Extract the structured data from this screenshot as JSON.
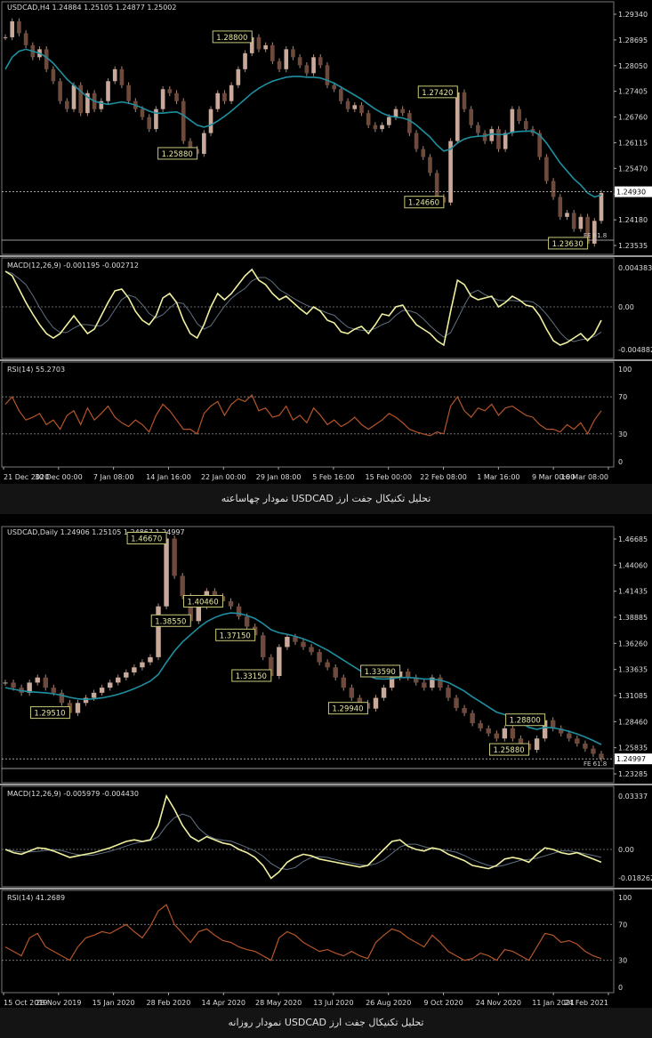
{
  "chart_data": [
    {
      "type": "candlestick",
      "symbol_header": "USDCAD,H4  1.24884 1.25105 1.24877 1.25002",
      "caption": "تحلیل تکنیکال جفت ارز USDCAD نمودار چهاساعته",
      "price_axis": [
        "1.29340",
        "1.28695",
        "1.28050",
        "1.27405",
        "1.26760",
        "1.26115",
        "1.25470",
        "1.24825",
        "1.24180",
        "1.23535"
      ],
      "price_range": [
        1.2345,
        1.296
      ],
      "current_price": "1.24930",
      "fe_label": "FE 61.8",
      "price_series": [
        1.288,
        1.292,
        1.289,
        1.286,
        1.283,
        1.285,
        1.28,
        1.277,
        1.272,
        1.27,
        1.276,
        1.269,
        1.274,
        1.27,
        1.272,
        1.277,
        1.28,
        1.276,
        1.272,
        1.27,
        1.268,
        1.265,
        1.27,
        1.275,
        1.274,
        1.272,
        1.262,
        1.26,
        1.2588,
        1.264,
        1.27,
        1.274,
        1.272,
        1.276,
        1.28,
        1.284,
        1.288,
        1.285,
        1.286,
        1.282,
        1.28,
        1.285,
        1.283,
        1.281,
        1.279,
        1.283,
        1.281,
        1.276,
        1.275,
        1.272,
        1.27,
        1.271,
        1.269,
        1.266,
        1.265,
        1.266,
        1.268,
        1.27,
        1.269,
        1.264,
        1.26,
        1.258,
        1.254,
        1.248,
        1.2466,
        1.262,
        1.2742,
        1.27,
        1.266,
        1.264,
        1.262,
        1.265,
        1.26,
        1.264,
        1.27,
        1.267,
        1.265,
        1.264,
        1.258,
        1.252,
        1.248,
        1.243,
        1.244,
        1.24,
        1.243,
        1.2363,
        1.242,
        1.249
      ],
      "ma_series": [
        1.28,
        1.283,
        1.2845,
        1.285,
        1.2845,
        1.284,
        1.283,
        1.2815,
        1.2795,
        1.2775,
        1.276,
        1.2745,
        1.273,
        1.272,
        1.2715,
        1.2712,
        1.2715,
        1.2718,
        1.2715,
        1.271,
        1.2703,
        1.2695,
        1.269,
        1.269,
        1.2692,
        1.2693,
        1.2685,
        1.2672,
        1.266,
        1.2655,
        1.266,
        1.267,
        1.2682,
        1.2695,
        1.271,
        1.2725,
        1.274,
        1.2752,
        1.2762,
        1.277,
        1.2775,
        1.278,
        1.2782,
        1.2782,
        1.278,
        1.278,
        1.2778,
        1.2772,
        1.2765,
        1.2755,
        1.2745,
        1.2735,
        1.2725,
        1.2712,
        1.27,
        1.269,
        1.2683,
        1.268,
        1.2678,
        1.2672,
        1.266,
        1.2645,
        1.263,
        1.261,
        1.2595,
        1.26,
        1.2615,
        1.2625,
        1.263,
        1.2632,
        1.2633,
        1.2638,
        1.2636,
        1.2637,
        1.2642,
        1.2644,
        1.2645,
        1.2645,
        1.2635,
        1.2615,
        1.259,
        1.2565,
        1.2545,
        1.2525,
        1.251,
        1.249,
        1.248,
        1.2485
      ],
      "level_labels": [
        {
          "text": "1.28800",
          "index": 36,
          "value": 1.288
        },
        {
          "text": "1.25880",
          "index": 28,
          "value": 1.2588
        },
        {
          "text": "1.27420",
          "index": 66,
          "value": 1.2742
        },
        {
          "text": "1.24660",
          "index": 64,
          "value": 1.2466
        },
        {
          "text": "1.23630",
          "index": 85,
          "value": 1.2363
        }
      ],
      "macd": {
        "header": "MACD(12,26,9) -0.001195 -0.002712",
        "axis": [
          "0.004383",
          "0.00",
          "-0.004882"
        ],
        "range": [
          -0.0052,
          0.0047
        ],
        "series": [
          0.004,
          0.0035,
          0.002,
          0.0005,
          -0.0008,
          -0.002,
          -0.003,
          -0.0035,
          -0.003,
          -0.002,
          -0.001,
          -0.002,
          -0.003,
          -0.0025,
          -0.001,
          0.0005,
          0.0018,
          0.002,
          0.001,
          -0.0005,
          -0.0015,
          -0.002,
          -0.001,
          0.001,
          0.0015,
          0.0005,
          -0.0015,
          -0.003,
          -0.0035,
          -0.002,
          0.0,
          0.0015,
          0.0008,
          0.0015,
          0.0025,
          0.0035,
          0.0042,
          0.003,
          0.0025,
          0.0015,
          0.0008,
          0.0012,
          0.0005,
          -0.0002,
          -0.0008,
          0.0,
          -0.0005,
          -0.0015,
          -0.0018,
          -0.0028,
          -0.003,
          -0.0025,
          -0.0022,
          -0.003,
          -0.002,
          -0.0008,
          -0.001,
          0.0,
          0.0002,
          -0.001,
          -0.002,
          -0.0025,
          -0.003,
          -0.0038,
          -0.0043,
          -0.0005,
          0.003,
          0.0025,
          0.0012,
          0.0008,
          0.001,
          0.0012,
          0.0,
          0.0005,
          0.0012,
          0.0008,
          0.0002,
          0.0,
          -0.001,
          -0.0025,
          -0.0038,
          -0.0043,
          -0.004,
          -0.0035,
          -0.003,
          -0.0038,
          -0.003,
          -0.0015
        ]
      },
      "rsi": {
        "header": "RSI(14) 55.2703",
        "axis": [
          "100",
          "70",
          "30",
          "0"
        ],
        "levels": [
          70,
          30
        ],
        "series": [
          62,
          70,
          55,
          45,
          48,
          52,
          40,
          45,
          35,
          50,
          55,
          40,
          58,
          45,
          52,
          60,
          48,
          42,
          38,
          45,
          40,
          32,
          50,
          62,
          55,
          45,
          35,
          35,
          30,
          52,
          60,
          65,
          50,
          62,
          68,
          65,
          72,
          55,
          58,
          48,
          50,
          60,
          45,
          50,
          42,
          58,
          50,
          40,
          45,
          38,
          42,
          48,
          40,
          35,
          40,
          45,
          52,
          48,
          42,
          35,
          32,
          30,
          28,
          32,
          30,
          60,
          70,
          55,
          48,
          58,
          55,
          62,
          50,
          58,
          60,
          55,
          50,
          48,
          40,
          35,
          35,
          32,
          40,
          35,
          42,
          30,
          45,
          55
        ]
      },
      "x_labels": [
        "21 Dec 2020",
        "30 Dec 00:00",
        "7 Jan 08:00",
        "14 Jan 16:00",
        "22 Jan 00:00",
        "29 Jan 08:00",
        "5 Feb 16:00",
        "15 Feb 00:00",
        "22 Feb 08:00",
        "1 Mar 16:00",
        "9 Mar 00:00",
        "16 Mar 08:00"
      ]
    },
    {
      "type": "candlestick",
      "symbol_header": "USDCAD,Daily  1.24906 1.25105 1.24867 1.24997",
      "caption": "تحلیل تکنیکال جفت ارز USDCAD نمودار روزانه",
      "price_axis": [
        "1.46685",
        "1.44060",
        "1.41435",
        "1.38885",
        "1.36260",
        "1.33635",
        "1.31085",
        "1.28460",
        "1.25835",
        "1.23285"
      ],
      "price_range": [
        1.23,
        1.475
      ],
      "current_price": "1.24997",
      "fe_label": "FE 61.8",
      "price_series": [
        1.325,
        1.32,
        1.315,
        1.325,
        1.33,
        1.32,
        1.315,
        1.305,
        1.2951,
        1.305,
        1.31,
        1.315,
        1.32,
        1.325,
        1.33,
        1.335,
        1.34,
        1.345,
        1.35,
        1.4,
        1.4667,
        1.43,
        1.41,
        1.3855,
        1.4,
        1.415,
        1.41,
        1.405,
        1.4,
        1.39,
        1.38,
        1.3715,
        1.35,
        1.3315,
        1.36,
        1.37,
        1.365,
        1.36,
        1.355,
        1.345,
        1.34,
        1.33,
        1.32,
        1.31,
        1.305,
        1.2994,
        1.31,
        1.32,
        1.33,
        1.3359,
        1.33,
        1.325,
        1.32,
        1.33,
        1.32,
        1.31,
        1.3,
        1.295,
        1.285,
        1.28,
        1.275,
        1.27,
        1.28,
        1.27,
        1.265,
        1.2588,
        1.27,
        1.288,
        1.28,
        1.275,
        1.27,
        1.265,
        1.26,
        1.255,
        1.25
      ],
      "ma_series": [
        1.32,
        1.3185,
        1.317,
        1.316,
        1.3155,
        1.315,
        1.314,
        1.3125,
        1.3105,
        1.309,
        1.3085,
        1.309,
        1.31,
        1.3115,
        1.3135,
        1.316,
        1.319,
        1.3225,
        1.3265,
        1.333,
        1.345,
        1.356,
        1.365,
        1.372,
        1.379,
        1.385,
        1.389,
        1.392,
        1.3935,
        1.393,
        1.391,
        1.388,
        1.383,
        1.377,
        1.374,
        1.3725,
        1.3705,
        1.368,
        1.365,
        1.361,
        1.357,
        1.352,
        1.347,
        1.342,
        1.337,
        1.332,
        1.329,
        1.3285,
        1.329,
        1.33,
        1.33,
        1.3295,
        1.3285,
        1.3285,
        1.3275,
        1.325,
        1.321,
        1.3165,
        1.311,
        1.306,
        1.301,
        1.296,
        1.2935,
        1.29,
        1.286,
        1.281,
        1.279,
        1.281,
        1.2805,
        1.279,
        1.277,
        1.2745,
        1.2715,
        1.268,
        1.264
      ],
      "level_labels": [
        {
          "text": "1.46670",
          "index": 20,
          "value": 1.4667
        },
        {
          "text": "1.38550",
          "index": 23,
          "value": 1.3855
        },
        {
          "text": "1.40460",
          "index": 27,
          "value": 1.4046
        },
        {
          "text": "1.37150",
          "index": 31,
          "value": 1.3715
        },
        {
          "text": "1.33150",
          "index": 33,
          "value": 1.3315
        },
        {
          "text": "1.29510",
          "index": 8,
          "value": 1.2951
        },
        {
          "text": "1.29940",
          "index": 45,
          "value": 1.2994
        },
        {
          "text": "1.33590",
          "index": 49,
          "value": 1.3359
        },
        {
          "text": "1.28800",
          "index": 67,
          "value": 1.288
        },
        {
          "text": "1.25880",
          "index": 65,
          "value": 1.2588
        }
      ],
      "macd": {
        "header": "MACD(12,26,9) -0.005979 -0.004430",
        "axis": [
          "0.03337",
          "0.00",
          "-0.018262"
        ],
        "range": [
          -0.02,
          0.035
        ],
        "series": [
          0.0,
          -0.002,
          -0.003,
          -0.001,
          0.001,
          0.0005,
          -0.001,
          -0.003,
          -0.005,
          -0.004,
          -0.003,
          -0.002,
          -0.0005,
          0.001,
          0.003,
          0.005,
          0.006,
          0.005,
          0.006,
          0.015,
          0.0334,
          0.025,
          0.015,
          0.008,
          0.005,
          0.008,
          0.006,
          0.004,
          0.003,
          0.0,
          -0.002,
          -0.005,
          -0.01,
          -0.018,
          -0.014,
          -0.008,
          -0.005,
          -0.003,
          -0.004,
          -0.006,
          -0.007,
          -0.008,
          -0.009,
          -0.01,
          -0.011,
          -0.01,
          -0.005,
          0.0,
          0.005,
          0.006,
          0.002,
          0.0,
          -0.001,
          0.001,
          0.0,
          -0.003,
          -0.005,
          -0.007,
          -0.01,
          -0.011,
          -0.012,
          -0.01,
          -0.006,
          -0.005,
          -0.006,
          -0.008,
          -0.003,
          0.001,
          0.0,
          -0.002,
          -0.003,
          -0.002,
          -0.004,
          -0.006,
          -0.008
        ]
      },
      "rsi": {
        "header": "RSI(14) 41.2689",
        "axis": [
          "100",
          "70",
          "30",
          "0"
        ],
        "levels": [
          70,
          30
        ],
        "series": [
          45,
          40,
          35,
          55,
          60,
          45,
          40,
          35,
          30,
          45,
          55,
          58,
          62,
          60,
          65,
          70,
          62,
          55,
          68,
          85,
          92,
          70,
          60,
          50,
          62,
          65,
          58,
          52,
          50,
          45,
          42,
          40,
          35,
          30,
          55,
          62,
          58,
          50,
          45,
          40,
          42,
          38,
          35,
          40,
          35,
          32,
          50,
          58,
          65,
          62,
          55,
          50,
          45,
          58,
          50,
          40,
          35,
          30,
          32,
          38,
          35,
          30,
          42,
          40,
          35,
          30,
          45,
          60,
          58,
          50,
          52,
          48,
          40,
          35,
          32
        ]
      },
      "x_labels": [
        "15 Oct 2019",
        "28 Nov 2019",
        "15 Jan 2020",
        "28 Feb 2020",
        "14 Apr 2020",
        "28 May 2020",
        "13 Jul 2020",
        "26 Aug 2020",
        "9 Oct 2020",
        "24 Nov 2020",
        "11 Jan 2021",
        "24 Feb 2021"
      ]
    }
  ]
}
